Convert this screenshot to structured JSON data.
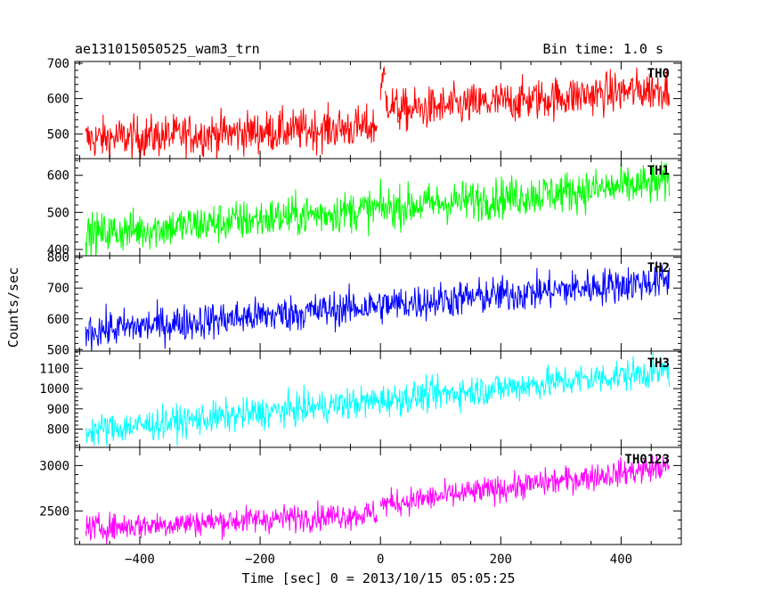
{
  "header": {
    "title": "ae131015050525_wam3_trn",
    "bin_time": "Bin time: 1.0 s"
  },
  "chart_data": {
    "type": "line",
    "xlabel": "Time [sec] 0 = 2013/10/15 05:05:25",
    "ylabel": "Counts/sec",
    "xlim": [
      -508,
      500
    ],
    "xticks": [
      -400,
      -200,
      0,
      200,
      400
    ],
    "xtick_labels": [
      "−400",
      "−200",
      "0",
      "200",
      "400"
    ],
    "x_range": [
      -490,
      480
    ],
    "grid": false,
    "panels": [
      {
        "name": "TH0",
        "color": "#ff0000",
        "ylim": [
          430,
          705
        ],
        "yticks": [
          500,
          600,
          700
        ],
        "segments": [
          {
            "x": [
              -490,
              -5
            ],
            "y": [
              485,
              520
            ]
          },
          {
            "x": [
              0,
              8
            ],
            "y": [
              640,
              660
            ]
          },
          {
            "x": [
              8,
              30
            ],
            "y": [
              600,
              565
            ]
          },
          {
            "x": [
              30,
              480
            ],
            "y": [
              565,
              630
            ]
          }
        ],
        "noise": 30
      },
      {
        "name": "TH1",
        "color": "#00ff00",
        "ylim": [
          383,
          645
        ],
        "yticks": [
          400,
          500,
          600
        ],
        "segments": [
          {
            "x": [
              -490,
              480
            ],
            "y": [
              440,
              580
            ]
          }
        ],
        "noise": 28
      },
      {
        "name": "TH2",
        "color": "#0000ff",
        "ylim": [
          495,
          805
        ],
        "yticks": [
          500,
          600,
          700,
          800
        ],
        "segments": [
          {
            "x": [
              -490,
              480
            ],
            "y": [
              560,
              725
            ]
          }
        ],
        "noise": 30
      },
      {
        "name": "TH3",
        "color": "#00ffff",
        "ylim": [
          710,
          1185
        ],
        "yticks": [
          800,
          900,
          1000,
          1100
        ],
        "segments": [
          {
            "x": [
              -490,
              480
            ],
            "y": [
              790,
              1090
            ]
          }
        ],
        "noise": 40
      },
      {
        "name": "TH0123",
        "color": "#ff00ff",
        "ylim": [
          2130,
          3200
        ],
        "yticks": [
          2500,
          3000
        ],
        "segments": [
          {
            "x": [
              -490,
              -5
            ],
            "y": [
              2310,
              2470
            ]
          },
          {
            "x": [
              0,
              480
            ],
            "y": [
              2570,
              2990
            ]
          }
        ],
        "noise": 75
      }
    ]
  }
}
